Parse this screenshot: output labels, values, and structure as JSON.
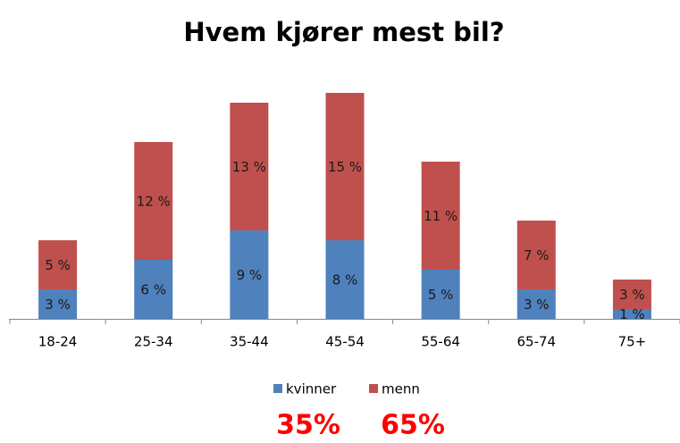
{
  "chart_data": {
    "type": "stacked_bar",
    "title": "Hvem kjører mest bil?",
    "categories": [
      "18-24",
      "25-34",
      "35-44",
      "45-54",
      "55-64",
      "65-74",
      "75+"
    ],
    "series": [
      {
        "name": "kvinner",
        "color": "#4f81bd",
        "values": [
          3,
          6,
          9,
          8,
          5,
          3,
          1
        ],
        "value_labels": [
          "3 %",
          "6 %",
          "9 %",
          "8 %",
          "5 %",
          "3 %",
          "1 %"
        ]
      },
      {
        "name": "menn",
        "color": "#c0504d",
        "values": [
          5,
          12,
          13,
          15,
          11,
          7,
          3
        ],
        "value_labels": [
          "5 %",
          "12 %",
          "13 %",
          "15 %",
          "11 %",
          "7 %",
          "3 %"
        ]
      }
    ],
    "legend": "bottom",
    "annotations": [
      "35%",
      "65%"
    ]
  }
}
